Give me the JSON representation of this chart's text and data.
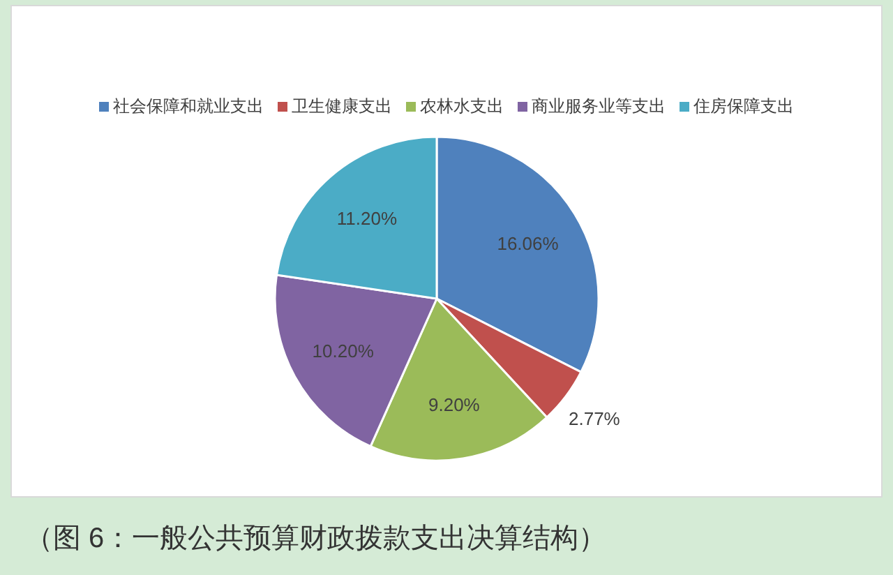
{
  "chart_data": {
    "type": "pie",
    "categories": [
      "社会保障和就业支出",
      "卫生健康支出",
      "农林水支出",
      "商业服务业等支出",
      "住房保障支出"
    ],
    "values": [
      16.06,
      2.77,
      9.2,
      10.2,
      11.2
    ],
    "colors": [
      "#4f81bd",
      "#c0504d",
      "#9bbb59",
      "#8064a2",
      "#4bacc6"
    ],
    "value_labels": [
      "16.06%",
      "2.77%",
      "9.20%",
      "10.20%",
      "11.20%"
    ],
    "legend": "top",
    "annotations": [
      "（图 6：一般公共预算财政拨款支出决算结构）"
    ]
  }
}
